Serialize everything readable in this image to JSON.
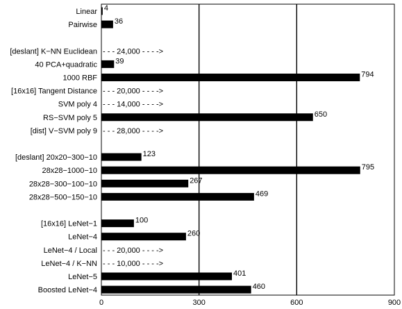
{
  "chart_data": {
    "type": "bar",
    "orientation": "horizontal",
    "title": "",
    "xlabel": "",
    "ylabel": "",
    "xlim": [
      0,
      900
    ],
    "xticks": [
      0,
      300,
      600,
      900
    ],
    "grid": "vertical lines at 300 and 600",
    "legend": "none",
    "bar_color": "#000000",
    "groups": [
      {
        "items": [
          {
            "label": "Linear",
            "value": 4,
            "value_label": "4"
          },
          {
            "label": "Pairwise",
            "value": 36,
            "value_label": "36"
          }
        ]
      },
      {
        "items": [
          {
            "label": "[deslant] K−NN Euclidean",
            "value": null,
            "offscale_label": "- - - 24,000 - - - ->"
          },
          {
            "label": "40 PCA+quadratic",
            "value": 39,
            "value_label": "39"
          },
          {
            "label": "1000 RBF",
            "value": 794,
            "value_label": "794"
          },
          {
            "label": "[16x16] Tangent Distance",
            "value": null,
            "offscale_label": "- - - 20,000 - - - ->"
          },
          {
            "label": "SVM poly 4",
            "value": null,
            "offscale_label": "- - - 14,000 - - - ->"
          },
          {
            "label": "RS−SVM poly 5",
            "value": 650,
            "value_label": "650"
          },
          {
            "label": "[dist] V−SVM poly 9",
            "value": null,
            "offscale_label": "- - - 28,000 - - - ->"
          }
        ]
      },
      {
        "items": [
          {
            "label": "[deslant] 20x20−300−10",
            "value": 123,
            "value_label": "123"
          },
          {
            "label": "28x28−1000−10",
            "value": 795,
            "value_label": "795"
          },
          {
            "label": "28x28−300−100−10",
            "value": 267,
            "value_label": "267"
          },
          {
            "label": "28x28−500−150−10",
            "value": 469,
            "value_label": "469"
          }
        ]
      },
      {
        "items": [
          {
            "label": "[16x16] LeNet−1",
            "value": 100,
            "value_label": "100"
          },
          {
            "label": "LeNet−4",
            "value": 260,
            "value_label": "260"
          },
          {
            "label": "LeNet−4 / Local",
            "value": null,
            "offscale_label": "- - - 20,000 - - - ->"
          },
          {
            "label": "LeNet−4 / K−NN",
            "value": null,
            "offscale_label": "- - - 10,000 - - - ->"
          },
          {
            "label": "LeNet−5",
            "value": 401,
            "value_label": "401"
          },
          {
            "label": "Boosted LeNet−4",
            "value": 460,
            "value_label": "460"
          }
        ]
      }
    ]
  }
}
